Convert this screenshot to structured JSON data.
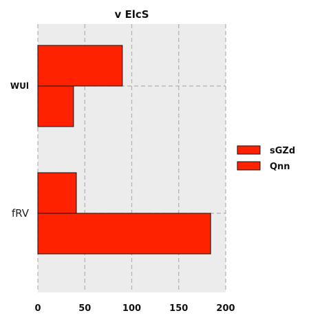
{
  "chart_data": {
    "type": "bar",
    "orientation": "horizontal",
    "title": "v ElcS",
    "categories": [
      "WUl",
      "fRV"
    ],
    "series": [
      {
        "name": "sGZd",
        "values": [
          90,
          41
        ]
      },
      {
        "name": "Qnn",
        "values": [
          38,
          184
        ]
      }
    ],
    "xlabel": "",
    "ylabel": "",
    "xlim": [
      0,
      200
    ],
    "xticks": [
      0,
      50,
      100,
      150,
      200
    ],
    "grid": true,
    "legend_position": "right",
    "colors": {
      "bar": "#ff2200",
      "bar_edge": "#111111",
      "plot_background": "#ececec",
      "grid": "#b0b0b0"
    }
  }
}
